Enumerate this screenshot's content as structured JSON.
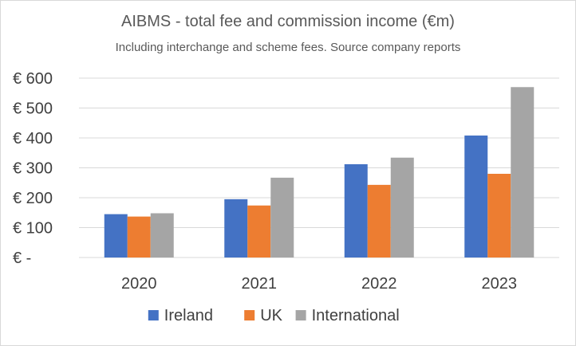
{
  "chart_data": {
    "type": "bar",
    "title": "AIBMS - total fee and commission income (€m)",
    "subtitle": "Including interchange and scheme fees. Source company reports",
    "xlabel": "",
    "ylabel": "",
    "categories": [
      "2020",
      "2021",
      "2022",
      "2023"
    ],
    "series": [
      {
        "name": "Ireland",
        "color": "#4472C4",
        "values": [
          145,
          195,
          312,
          408
        ]
      },
      {
        "name": "UK",
        "color": "#ED7D31",
        "values": [
          137,
          174,
          243,
          280
        ]
      },
      {
        "name": "International",
        "color": "#A5A5A5",
        "values": [
          148,
          267,
          334,
          570
        ]
      }
    ],
    "ylim": [
      0,
      600
    ],
    "y_ticks": [
      0,
      100,
      200,
      300,
      400,
      500,
      600
    ],
    "y_tick_labels": [
      "€ -",
      "€ 100",
      "€ 200",
      "€ 300",
      "€ 400",
      "€ 500",
      "€ 600"
    ],
    "grid": true,
    "gridline_color": "#d9d9d9",
    "legend_position": "bottom"
  }
}
